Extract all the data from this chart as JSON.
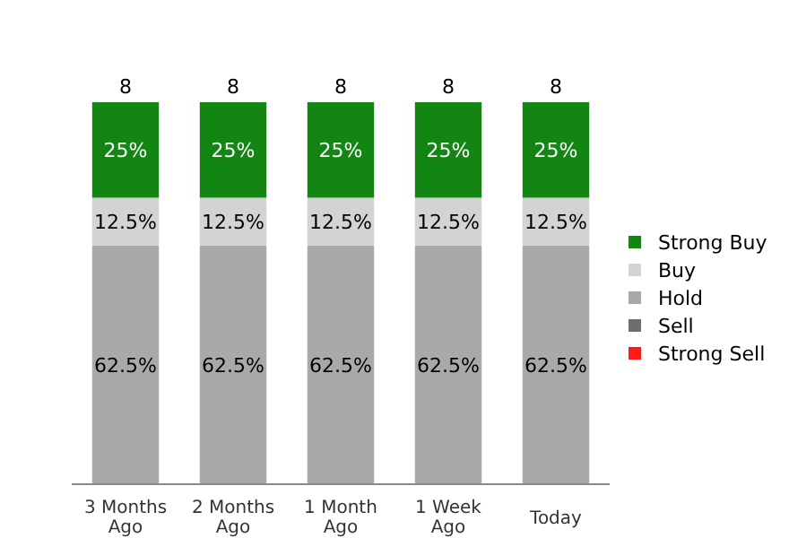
{
  "chart_data": {
    "type": "bar",
    "stacked": true,
    "categories": [
      "3 Months Ago",
      "2 Months Ago",
      "1 Month Ago",
      "1 Week Ago",
      "Today"
    ],
    "series": [
      {
        "name": "Strong Sell",
        "color": "#ff1a1a",
        "values": [
          0,
          0,
          0,
          0,
          0
        ],
        "value_labels": [
          null,
          null,
          null,
          null,
          null
        ]
      },
      {
        "name": "Sell",
        "color": "#6e6e6e",
        "values": [
          0,
          0,
          0,
          0,
          0
        ],
        "value_labels": [
          null,
          null,
          null,
          null,
          null
        ]
      },
      {
        "name": "Hold",
        "color": "#a9a9a9",
        "values": [
          62.5,
          62.5,
          62.5,
          62.5,
          62.5
        ],
        "value_labels": [
          "62.5%",
          "62.5%",
          "62.5%",
          "62.5%",
          "62.5%"
        ]
      },
      {
        "name": "Buy",
        "color": "#d3d3d3",
        "values": [
          12.5,
          12.5,
          12.5,
          12.5,
          12.5
        ],
        "value_labels": [
          "12.5%",
          "12.5%",
          "12.5%",
          "12.5%",
          "12.5%"
        ]
      },
      {
        "name": "Strong Buy",
        "color": "#138513",
        "values": [
          25,
          25,
          25,
          25,
          25
        ],
        "value_labels": [
          "25%",
          "25%",
          "25%",
          "25%",
          "25%"
        ]
      }
    ],
    "annotations": [
      {
        "text": "8",
        "x": "3 Months Ago",
        "y": 100
      },
      {
        "text": "8",
        "x": "2 Months Ago",
        "y": 100
      },
      {
        "text": "8",
        "x": "1 Month Ago",
        "y": 100
      },
      {
        "text": "8",
        "x": "1 Week Ago",
        "y": 100
      },
      {
        "text": "8",
        "x": "Today",
        "y": 100
      }
    ],
    "legend": "right"
  }
}
